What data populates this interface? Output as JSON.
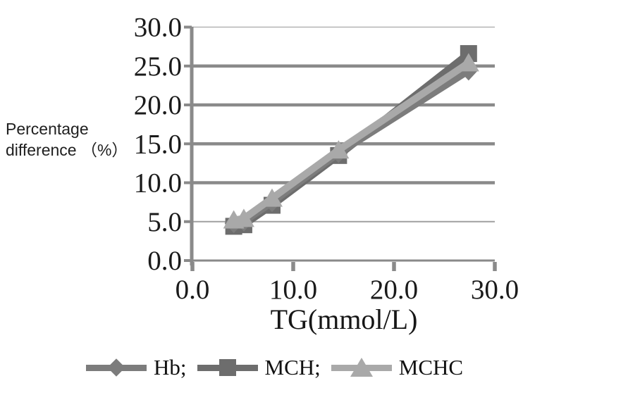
{
  "figure": {
    "background": "#ffffff"
  },
  "chart_data": {
    "type": "line",
    "title": "",
    "ylabel_lines": [
      "Percentage",
      "difference （%）"
    ],
    "xlabel": "TG(mmol/L)",
    "xlim": [
      0.0,
      30.0
    ],
    "ylim": [
      0.0,
      30.0
    ],
    "grid": "horizontal gridlines every 5 units",
    "legend_position": "bottom",
    "x_ticks": [
      {
        "value": 0,
        "label": "0.0"
      },
      {
        "value": 10,
        "label": "10.0"
      },
      {
        "value": 20,
        "label": "20.0"
      },
      {
        "value": 30,
        "label": "30.0"
      }
    ],
    "y_ticks": [
      {
        "value": 0,
        "label": "0.0"
      },
      {
        "value": 5,
        "label": "5.0"
      },
      {
        "value": 10,
        "label": "10.0"
      },
      {
        "value": 15,
        "label": "15.0"
      },
      {
        "value": 20,
        "label": "20.0"
      },
      {
        "value": 25,
        "label": "25.0"
      },
      {
        "value": 30,
        "label": "30.0"
      }
    ],
    "x": [
      4.1,
      5.1,
      7.9,
      14.5,
      27.4
    ],
    "series": [
      {
        "name": "Hb",
        "legend_label": "Hb;",
        "marker": "diamond",
        "color": "#7c7c7c",
        "values": [
          4.8,
          5.0,
          7.5,
          13.8,
          24.4
        ]
      },
      {
        "name": "MCH",
        "legend_label": "MCH;",
        "marker": "square",
        "color": "#6d6d6d",
        "values": [
          4.4,
          4.6,
          7.1,
          13.5,
          26.6
        ]
      },
      {
        "name": "MCHC",
        "legend_label": "MCHC",
        "marker": "triangle",
        "color": "#a9a9a9",
        "values": [
          5.2,
          5.4,
          8.0,
          14.2,
          25.4
        ]
      }
    ],
    "draw_order": [
      1,
      0,
      2
    ],
    "colors": {
      "grid_major": "#8a8a8a",
      "grid_minor": "#9f9f9f",
      "grid_light": "#b3b3b3",
      "axis": "#8a8a8a",
      "text": "#1a1a1a"
    }
  }
}
